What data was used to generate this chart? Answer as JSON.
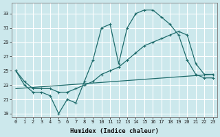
{
  "xlabel": "Humidex (Indice chaleur)",
  "background_color": "#cce8ec",
  "grid_color": "#b0d8dc",
  "line_color": "#1e6b6b",
  "x_ticks": [
    0,
    1,
    2,
    3,
    4,
    5,
    6,
    7,
    8,
    9,
    10,
    11,
    12,
    13,
    14,
    15,
    16,
    17,
    18,
    19,
    20,
    21,
    22,
    23
  ],
  "y_ticks": [
    19,
    21,
    23,
    25,
    27,
    29,
    31,
    33
  ],
  "xlim": [
    -0.5,
    23.5
  ],
  "ylim": [
    18.5,
    34.5
  ],
  "series1": {
    "x": [
      0,
      1,
      2,
      3,
      4,
      5,
      6,
      7,
      8,
      9,
      10,
      11,
      12,
      13,
      14,
      15,
      16,
      17,
      18,
      19,
      20,
      21,
      22,
      23
    ],
    "y": [
      25.0,
      23.0,
      22.0,
      22.0,
      21.5,
      19.0,
      21.0,
      20.5,
      23.5,
      26.5,
      31.0,
      31.5,
      26.0,
      31.0,
      33.0,
      33.5,
      33.5,
      32.5,
      31.5,
      30.0,
      26.5,
      24.5,
      24.0,
      24.0
    ]
  },
  "series2": {
    "x": [
      0,
      1,
      2,
      3,
      4,
      5,
      6,
      7,
      8,
      9,
      10,
      11,
      12,
      13,
      14,
      15,
      16,
      17,
      18,
      19,
      20,
      21,
      22,
      23
    ],
    "y": [
      25.0,
      23.5,
      22.5,
      22.5,
      22.5,
      22.0,
      22.0,
      22.5,
      23.0,
      23.5,
      24.5,
      25.0,
      25.5,
      26.5,
      27.5,
      28.5,
      29.0,
      29.5,
      30.0,
      30.5,
      30.0,
      26.0,
      24.5,
      24.5
    ]
  },
  "series3": {
    "x": [
      0,
      23
    ],
    "y": [
      22.5,
      24.5
    ]
  }
}
